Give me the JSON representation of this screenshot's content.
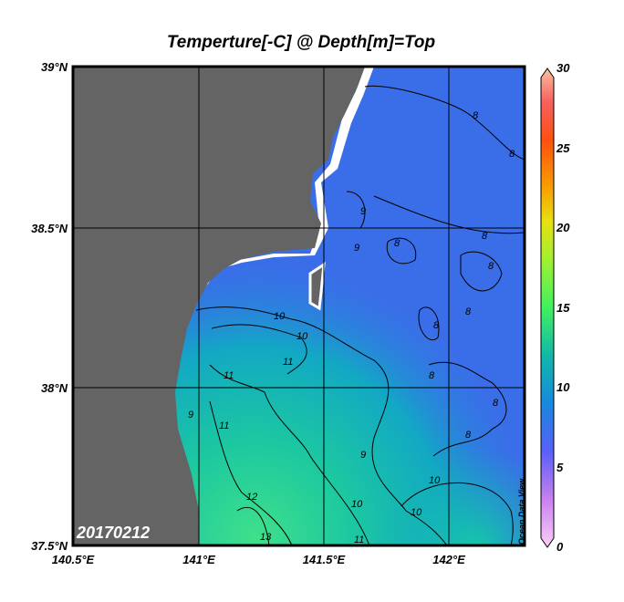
{
  "title": "Temperture[-C] @ Depth[m]=Top",
  "date_label": "20170212",
  "watermark": "Ocean Data View",
  "latitude_labels": [
    "39°N",
    "38.5°N",
    "38°N",
    "37.5°N"
  ],
  "longitude_labels": [
    "140.5°E",
    "141°E",
    "141.5°E",
    "142°E"
  ],
  "colorbar": {
    "ticks": [
      "30",
      "25",
      "20",
      "15",
      "10",
      "5",
      "0"
    ],
    "min": 0,
    "max": 30
  },
  "contour_labels": [
    "8",
    "8",
    "8",
    "8",
    "8",
    "8",
    "8",
    "8",
    "8",
    "8",
    "9",
    "9",
    "9",
    "9",
    "10",
    "10",
    "10",
    "10",
    "10",
    "11",
    "11",
    "11",
    "11",
    "12",
    "13"
  ],
  "colors": {
    "land": "#646464",
    "ocean_cold": "#3a6ee8",
    "ocean_mid": "#10a8c0",
    "ocean_warm": "#3cdc88"
  }
}
